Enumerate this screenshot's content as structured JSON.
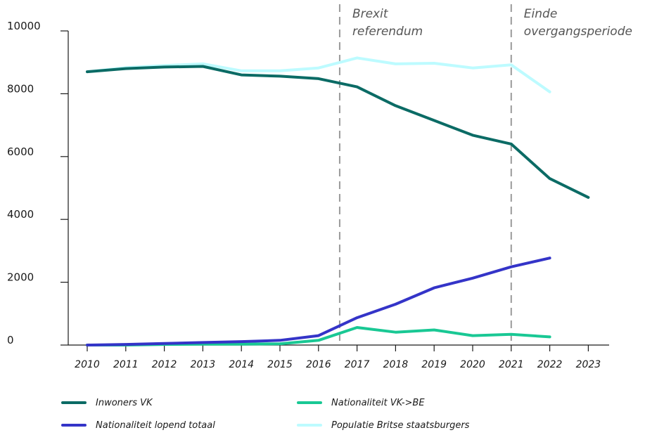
{
  "chart_data": {
    "type": "line",
    "x": [
      "2010",
      "2011",
      "2012",
      "2013",
      "2014",
      "2015",
      "2016",
      "2017",
      "2018",
      "2019",
      "2020",
      "2021",
      "2022",
      "2023"
    ],
    "ylim": [
      0,
      10000
    ],
    "yticks": [
      "0",
      "2000",
      "4000",
      "6000",
      "8000",
      "10000"
    ],
    "series": [
      {
        "name": "Inwoners VK",
        "color": "#0b6b65",
        "values": [
          8700,
          8800,
          8850,
          8870,
          8600,
          8560,
          8480,
          8220,
          7620,
          7150,
          6680,
          6400,
          5300,
          4700
        ]
      },
      {
        "name": "Populatie Britse staatsburgers",
        "color": "#bdfbff",
        "values": [
          8700,
          8830,
          8900,
          8950,
          8730,
          8730,
          8820,
          9140,
          8950,
          8970,
          8820,
          8920,
          8060,
          null
        ]
      },
      {
        "name": "Nationaliteit lopend totaal",
        "color": "#3434c8",
        "values": [
          0,
          20,
          50,
          80,
          110,
          150,
          300,
          870,
          1300,
          1820,
          2130,
          2490,
          2770,
          null
        ]
      },
      {
        "name": "Nationaliteit VK->BE",
        "color": "#19c894",
        "values": [
          0,
          0,
          20,
          30,
          30,
          40,
          150,
          560,
          410,
          480,
          300,
          340,
          260,
          null
        ]
      }
    ],
    "annotations": [
      {
        "lines": [
          "Brexit",
          "referendum"
        ],
        "x_position": 2016.55
      },
      {
        "lines": [
          "Einde",
          "overgangsperiode"
        ],
        "x_position": 2021
      }
    ],
    "legend_position": "bottom",
    "legend_order": [
      "Inwoners VK",
      "Nationaliteit VK->BE",
      "Nationaliteit lopend totaal",
      "Populatie Britse staatsburgers"
    ],
    "grid": false
  }
}
